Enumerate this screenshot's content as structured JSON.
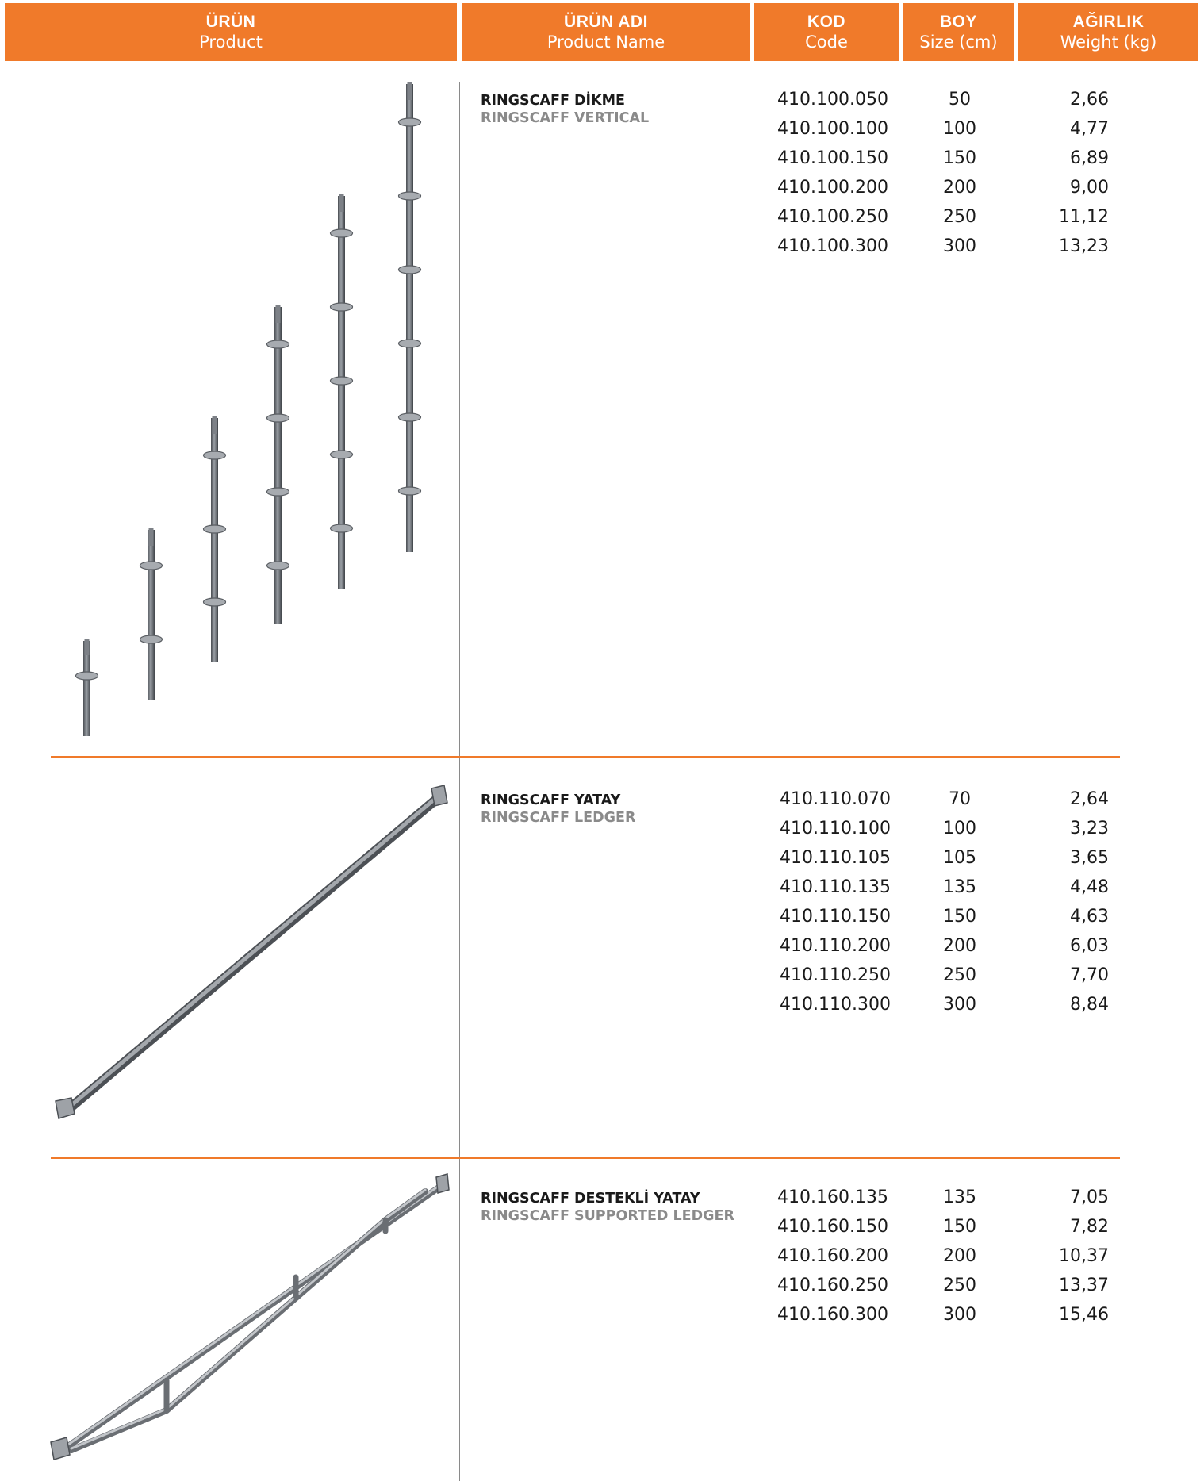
{
  "header": {
    "product": {
      "tr": "ÜRÜN",
      "en": "Product"
    },
    "product_name": {
      "tr": "ÜRÜN ADI",
      "en": "Product Name"
    },
    "code": {
      "tr": "KOD",
      "en": "Code"
    },
    "size": {
      "tr": "BOY",
      "en": "Size (cm)"
    },
    "weight": {
      "tr": "AĞIRLIK",
      "en": "Weight (kg)"
    }
  },
  "colors": {
    "accent": "#f07a2a",
    "divider": "#8a8a8a",
    "steel": "#6f7378"
  },
  "products": [
    {
      "name_tr": "RINGSCAFF DİKME",
      "name_en": "RINGSCAFF VERTICAL",
      "image_icon": "vertical-standards-illustration",
      "rows": [
        {
          "code": "410.100.050",
          "size": "50",
          "weight": "2,66"
        },
        {
          "code": "410.100.100",
          "size": "100",
          "weight": "4,77"
        },
        {
          "code": "410.100.150",
          "size": "150",
          "weight": "6,89"
        },
        {
          "code": "410.100.200",
          "size": "200",
          "weight": "9,00"
        },
        {
          "code": "410.100.250",
          "size": "250",
          "weight": "11,12"
        },
        {
          "code": "410.100.300",
          "size": "300",
          "weight": "13,23"
        }
      ]
    },
    {
      "name_tr": "RINGSCAFF YATAY",
      "name_en": "RINGSCAFF LEDGER",
      "image_icon": "ledger-illustration",
      "rows": [
        {
          "code": "410.110.070",
          "size": "70",
          "weight": "2,64"
        },
        {
          "code": "410.110.100",
          "size": "100",
          "weight": "3,23"
        },
        {
          "code": "410.110.105",
          "size": "105",
          "weight": "3,65"
        },
        {
          "code": "410.110.135",
          "size": "135",
          "weight": "4,48"
        },
        {
          "code": "410.110.150",
          "size": "150",
          "weight": "4,63"
        },
        {
          "code": "410.110.200",
          "size": "200",
          "weight": "6,03"
        },
        {
          "code": "410.110.250",
          "size": "250",
          "weight": "7,70"
        },
        {
          "code": "410.110.300",
          "size": "300",
          "weight": "8,84"
        }
      ]
    },
    {
      "name_tr": "RINGSCAFF DESTEKLİ YATAY",
      "name_en": "RINGSCAFF SUPPORTED LEDGER",
      "image_icon": "supported-ledger-illustration",
      "rows": [
        {
          "code": "410.160.135",
          "size": "135",
          "weight": "7,05"
        },
        {
          "code": "410.160.150",
          "size": "150",
          "weight": "7,82"
        },
        {
          "code": "410.160.200",
          "size": "200",
          "weight": "10,37"
        },
        {
          "code": "410.160.250",
          "size": "250",
          "weight": "13,37"
        },
        {
          "code": "410.160.300",
          "size": "300",
          "weight": "15,46"
        }
      ]
    }
  ]
}
